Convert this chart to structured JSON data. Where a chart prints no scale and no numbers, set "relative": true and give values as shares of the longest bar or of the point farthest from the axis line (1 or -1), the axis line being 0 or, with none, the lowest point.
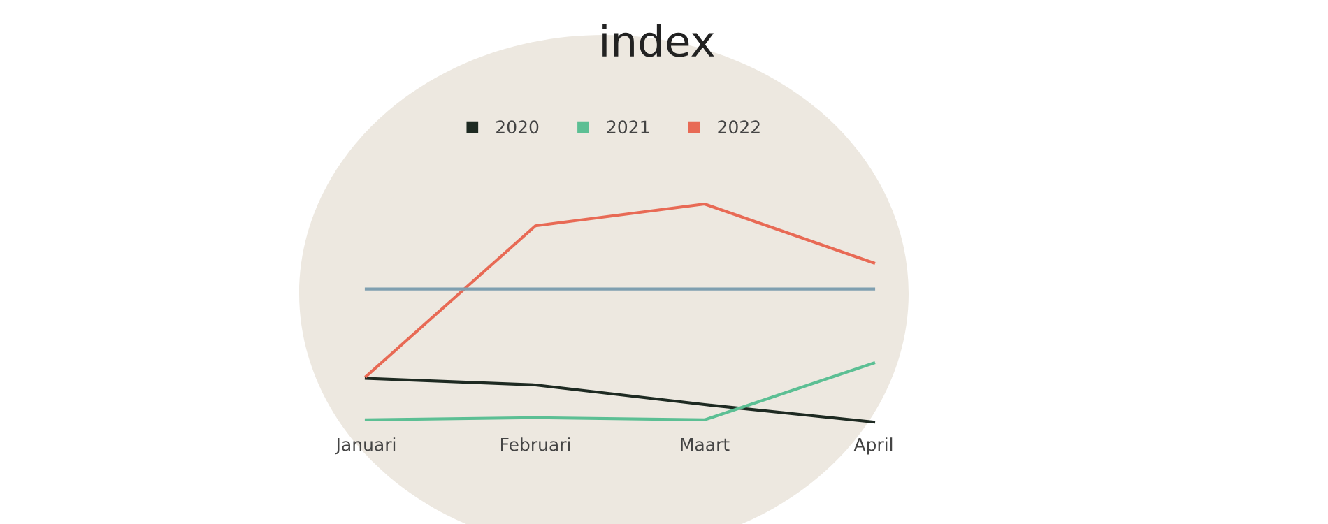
{
  "chart_data": {
    "type": "line",
    "title": "index",
    "relative": true,
    "categories": [
      "Januari",
      "Februari",
      "Maart",
      "April"
    ],
    "series": [
      {
        "name": "2020",
        "color": "#1e2a22",
        "values": [
          0.2,
          0.17,
          0.08,
          0.0
        ]
      },
      {
        "name": "2021",
        "color": "#5cbf94",
        "values": [
          0.01,
          0.02,
          0.01,
          0.27
        ]
      },
      {
        "name": "2022",
        "color": "#e86a55",
        "values": [
          0.21,
          0.9,
          1.0,
          0.73
        ]
      }
    ],
    "ref_lines": [
      {
        "axis": "y",
        "value": 0.61,
        "color": "#7f9fb0"
      }
    ],
    "legend": "top",
    "grid": false,
    "marker": "none",
    "line_style": "solid"
  }
}
